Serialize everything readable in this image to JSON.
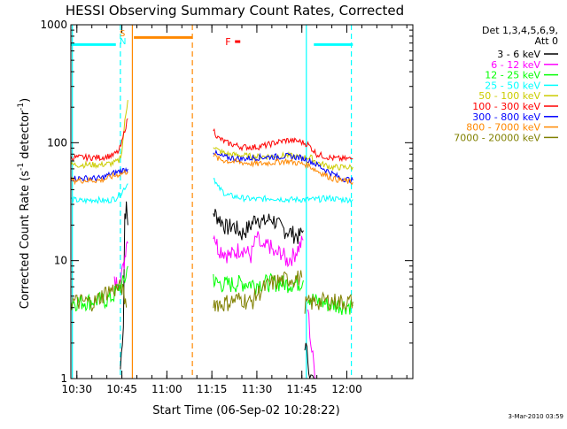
{
  "chart_data": {
    "type": "line",
    "title": "HESSI Observing Summary Count Rates, Corrected",
    "xlabel": "Start Time (06-Sep-02 10:28:22)",
    "ylabel_parts": [
      "Corrected Count Rate (s",
      "-1",
      " detector",
      "-1",
      ")"
    ],
    "y_scale": "log",
    "ylim": [
      1,
      1000
    ],
    "y_ticks": [
      {
        "value": 1,
        "label": "1"
      },
      {
        "value": 10,
        "label": "10"
      },
      {
        "value": 100,
        "label": "100"
      },
      {
        "value": 1000,
        "label": "1000"
      }
    ],
    "xlim_minutes": [
      -2,
      112
    ],
    "x_ticks": [
      {
        "minute": 0,
        "label": "10:30"
      },
      {
        "minute": 15,
        "label": "10:45"
      },
      {
        "minute": 30,
        "label": "11:00"
      },
      {
        "minute": 45,
        "label": "11:15"
      },
      {
        "minute": 60,
        "label": "11:30"
      },
      {
        "minute": 75,
        "label": "11:45"
      },
      {
        "minute": 90,
        "label": "12:00"
      }
    ],
    "detector_header": "Det 1,3,4,5,6,9,",
    "attenuator_label": "Att 0",
    "series": [
      {
        "name": "3 - 6 keV",
        "color": "#000000",
        "segments": [
          {
            "x": [
              14.5,
              15.5,
              16.0,
              16.5,
              17.0
            ],
            "y": [
              1.2,
              3.0,
              25,
              28,
              20
            ]
          },
          {
            "x": [
              45.5,
              48,
              50,
              52,
              55,
              58,
              60,
              62,
              65,
              68,
              70,
              72,
              74,
              75.5
            ],
            "y": [
              26,
              22,
              19,
              20,
              17,
              20,
              24,
              21,
              23,
              19,
              18,
              17,
              16,
              18
            ]
          },
          {
            "x": [
              76,
              77,
              78,
              79
            ],
            "y": [
              2.0,
              1.5,
              1.0,
              1.0
            ]
          }
        ]
      },
      {
        "name": "6 - 12 keV",
        "color": "#ff00ff",
        "segments": [
          {
            "x": [
              12.5,
              13.5,
              14.5,
              15.5,
              16.0,
              16.5,
              17.0
            ],
            "y": [
              6.5,
              6.5,
              7.5,
              8.5,
              11,
              15,
              14
            ]
          },
          {
            "x": [
              45.5,
              47,
              49,
              51,
              53,
              55,
              58,
              60,
              62,
              64,
              66,
              68,
              70,
              72,
              74,
              75.5
            ],
            "y": [
              18,
              13,
              12,
              11,
              12,
              13,
              11,
              16,
              12,
              14,
              11,
              12,
              10,
              11,
              13,
              15
            ]
          },
          {
            "x": [
              77,
              78,
              79,
              80
            ],
            "y": [
              4.0,
              2.0,
              1.3,
              1.0
            ]
          }
        ]
      },
      {
        "name": "12 - 25 keV",
        "color": "#00ff00",
        "segments": [
          {
            "x": [
              -2,
              2,
              6,
              10,
              12,
              13,
              14,
              15,
              16,
              17
            ],
            "y": [
              4.5,
              4.5,
              4.6,
              4.7,
              5.0,
              5.5,
              6.0,
              6.2,
              7.0,
              9.0
            ]
          },
          {
            "x": [
              45.5,
              46,
              50,
              55,
              60,
              65,
              70,
              74,
              75.5
            ],
            "y": [
              7.5,
              6.5,
              6.3,
              6.5,
              6.4,
              6.6,
              6.4,
              6.5,
              6.8
            ]
          },
          {
            "x": [
              77,
              80,
              84,
              88,
              92
            ],
            "y": [
              5.0,
              4.5,
              4.3,
              4.2,
              4.2
            ]
          }
        ]
      },
      {
        "name": "25 - 50 keV",
        "color": "#00ffff",
        "segments": [
          {
            "x": [
              -2,
              2,
              6,
              10,
              13,
              15,
              16,
              17
            ],
            "y": [
              33,
              32,
              33,
              32,
              34,
              38,
              42,
              45
            ]
          },
          {
            "x": [
              45.5,
              47,
              50,
              55,
              60,
              65,
              70,
              75,
              80,
              84,
              88,
              92
            ],
            "y": [
              52,
              42,
              36,
              34,
              33,
              34,
              33,
              33,
              33,
              34,
              33,
              33
            ]
          }
        ]
      },
      {
        "name": "50 - 100 keV",
        "color": "#cccc00",
        "segments": [
          {
            "x": [
              -2,
              3,
              8,
              12,
              14,
              15,
              16,
              17
            ],
            "y": [
              65,
              65,
              65,
              67,
              70,
              85,
              150,
              230
            ]
          },
          {
            "x": [
              45.5,
              47,
              50,
              55,
              60,
              65,
              70,
              75,
              78,
              80,
              85,
              88,
              92
            ],
            "y": [
              95,
              86,
              80,
              78,
              76,
              77,
              78,
              75,
              75,
              68,
              62,
              62,
              62
            ]
          }
        ]
      },
      {
        "name": "100 - 300 keV",
        "color": "#ff0000",
        "segments": [
          {
            "x": [
              -2,
              3,
              8,
              12,
              14,
              15,
              16,
              17
            ],
            "y": [
              75,
              75,
              75,
              78,
              85,
              100,
              130,
              160
            ]
          },
          {
            "x": [
              45.5,
              47,
              50,
              55,
              60,
              63,
              66,
              70,
              74,
              77,
              80,
              85,
              88,
              92
            ],
            "y": [
              130,
              110,
              100,
              92,
              92,
              95,
              100,
              105,
              103,
              97,
              80,
              74,
              73,
              73
            ]
          }
        ]
      },
      {
        "name": "300 - 800 keV",
        "color": "#0000ff",
        "segments": [
          {
            "x": [
              -2,
              3,
              8,
              12,
              15,
              17
            ],
            "y": [
              50,
              50,
              50,
              55,
              58,
              60
            ]
          },
          {
            "x": [
              45.5,
              47,
              50,
              55,
              60,
              65,
              70,
              74,
              77,
              80,
              85,
              88,
              92
            ],
            "y": [
              85,
              78,
              75,
              73,
              75,
              76,
              77,
              75,
              72,
              65,
              55,
              50,
              48
            ]
          }
        ]
      },
      {
        "name": "800 - 7000 keV",
        "color": "#ff8800",
        "segments": [
          {
            "x": [
              -2,
              3,
              8,
              12,
              15,
              17
            ],
            "y": [
              48,
              48,
              48,
              52,
              55,
              57
            ]
          },
          {
            "x": [
              45.5,
              47,
              50,
              55,
              60,
              65,
              70,
              74,
              77,
              80,
              85,
              88,
              92
            ],
            "y": [
              80,
              73,
              70,
              68,
              66,
              68,
              70,
              67,
              65,
              58,
              50,
              48,
              46
            ]
          }
        ]
      },
      {
        "name": "7000 - 20000 keV",
        "color": "#808000",
        "segments": [
          {
            "x": [
              -2,
              3,
              6,
              8,
              10,
              13,
              15,
              16.5
            ],
            "y": [
              4.5,
              4.5,
              4.5,
              5.0,
              5.5,
              5.8,
              6.0,
              4.0
            ]
          },
          {
            "x": [
              45.5,
              48,
              52,
              55,
              58,
              60,
              62,
              65,
              70,
              75
            ],
            "y": [
              4.5,
              4.3,
              4.6,
              4.8,
              4.4,
              5.2,
              5.8,
              6.5,
              7.0,
              7.2
            ]
          },
          {
            "x": [
              76,
              80,
              84,
              88,
              92
            ],
            "y": [
              4.3,
              4.5,
              4.6,
              4.5,
              4.5
            ]
          }
        ]
      }
    ],
    "annotations": {
      "saa_flag": {
        "color": "#00ffff",
        "value": 680,
        "segments": [
          [
            -2,
            13
          ],
          [
            79,
            92
          ]
        ]
      },
      "night_flag": {
        "color": "#ff8800",
        "value": 780,
        "segments": [
          [
            19,
            38.5
          ]
        ]
      },
      "vertical_lines": [
        {
          "minute": -1.5,
          "color": "#00ffff",
          "style": "solid"
        },
        {
          "minute": 14.5,
          "color": "#00ffff",
          "style": "dashed"
        },
        {
          "minute": 18.5,
          "color": "#ff8800",
          "style": "solid"
        },
        {
          "minute": 38.5,
          "color": "#ff8800",
          "style": "dashed"
        },
        {
          "minute": 76.5,
          "color": "#00ffff",
          "style": "solid"
        },
        {
          "minute": 91.5,
          "color": "#00ffff",
          "style": "dashed"
        }
      ],
      "s_marker": {
        "label": "S",
        "color": "#ff8800",
        "minute": 17.2
      },
      "n_marker": {
        "label": "N",
        "color": "#00ffff",
        "minute": 17.2
      },
      "f_marker": {
        "label": "F",
        "color": "#ff0000",
        "minute": 53,
        "value": 720
      }
    },
    "grid": false
  },
  "footer": {
    "timestamp": "3-Mar-2010 03:59"
  }
}
